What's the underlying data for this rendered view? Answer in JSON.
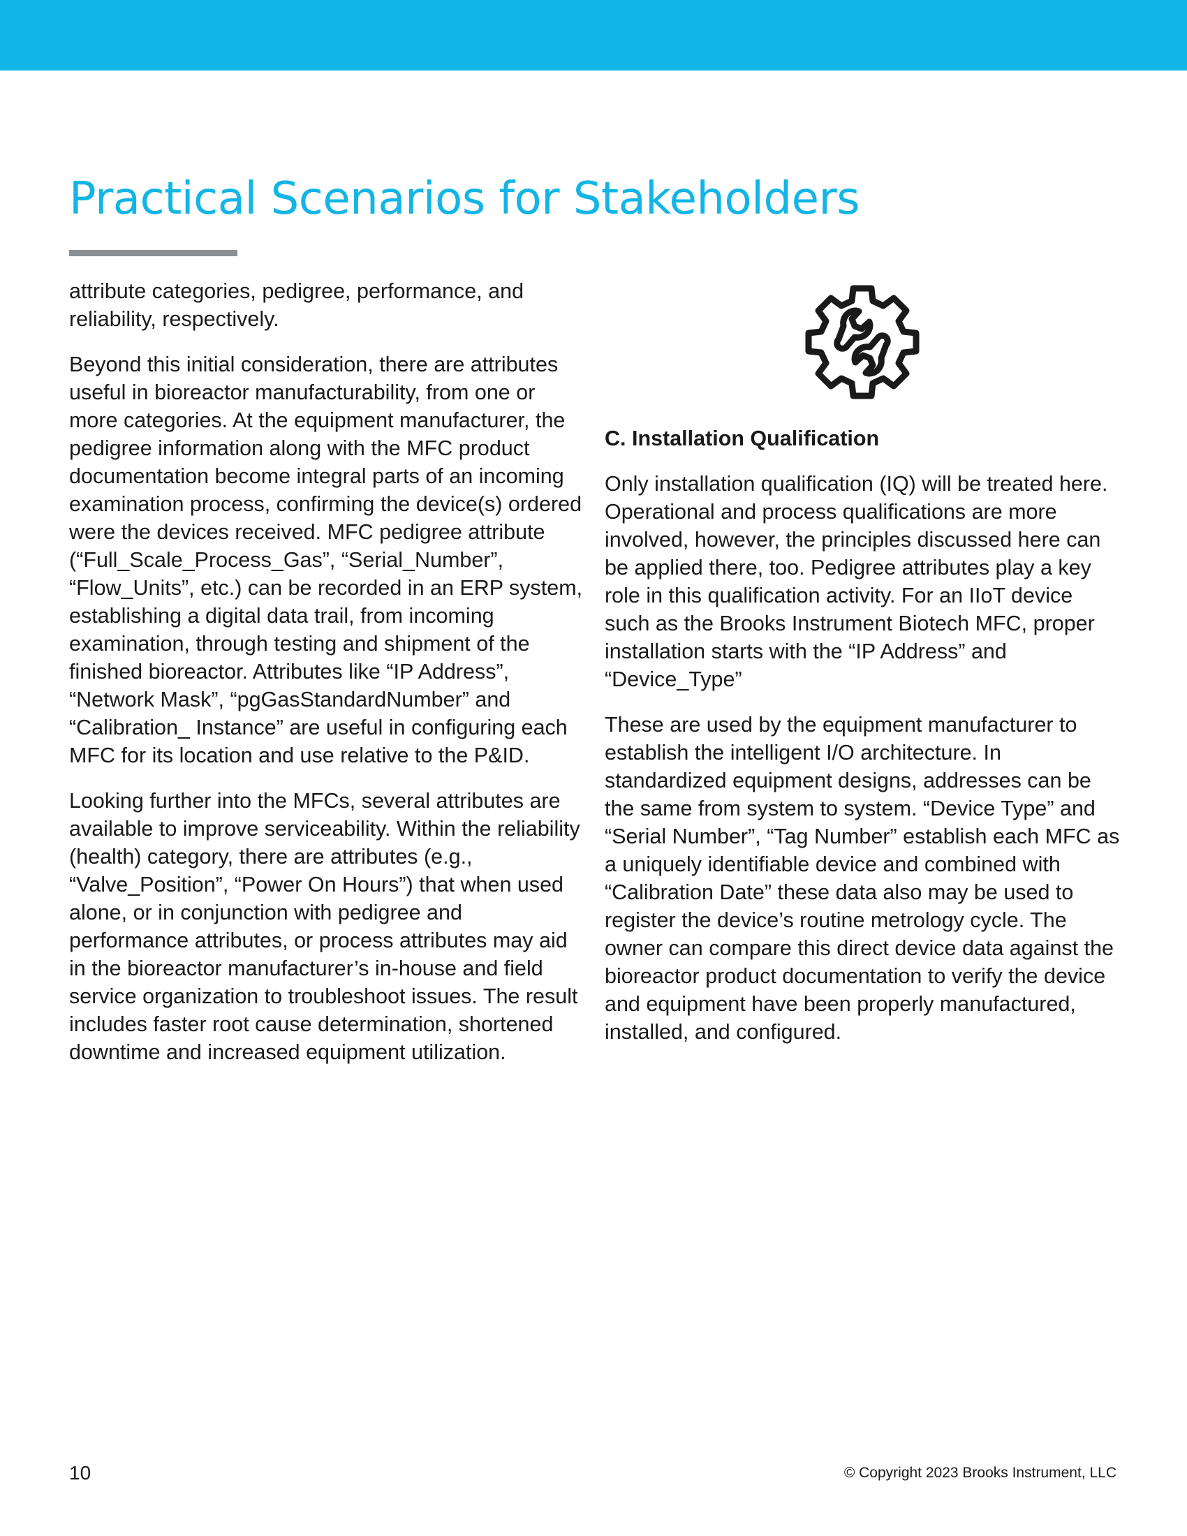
{
  "header": {
    "band_color": "#12b5e5"
  },
  "page": {
    "title": "Practical Scenarios for Stakeholders",
    "title_color": "#12b5e5",
    "rule_color": "#8a8f94"
  },
  "left_column": {
    "paragraphs": [
      "attribute categories, pedigree, performance, and reliability, respectively.",
      "Beyond this initial consideration, there are attributes useful in bioreactor manufacturability, from one or more categories. At the equipment manufacturer, the pedigree information along with the MFC product documentation become integral parts of an incoming examination process, confirming the device(s) ordered were the devices received. MFC pedigree attribute (“Full_Scale_Process_Gas”, “Serial_Number”, “Flow_Units”, etc.) can be recorded in an ERP system, establishing a digital data trail, from incoming examination, through testing and shipment of the finished bioreactor. Attributes like “IP Address”, “Network Mask”, “pgGasStandardNumber” and “Calibration_ Instance” are useful in configuring each MFC for its location and use relative to the P&ID.",
      "Looking further into the MFCs, several attributes are available to improve serviceability. Within the reliability (health) category, there are attributes (e.g., “Valve_Position”, “Power On Hours”) that when used alone, or in conjunction with pedigree and performance attributes, or process attributes may aid in the bioreactor manufacturer’s in-house and field service organization to troubleshoot issues. The result includes faster root cause determination, shortened downtime and increased equipment utilization."
    ]
  },
  "right_column": {
    "icon": "gear-wrench-icon",
    "heading": "C.  Installation Qualification",
    "paragraphs": [
      "Only installation qualification (IQ) will be treated here. Operational and process qualifications are more involved, however, the principles discussed here can be applied there, too. Pedigree attributes play a key role in this qualification activity. For an IIoT device such as the Brooks Instrument Biotech MFC, proper installation starts with the “IP Address” and “Device_Type”",
      "These are used by the equipment manufacturer to establish the intelligent I/O architecture. In standardized equipment designs, addresses can be the same from system to system. “Device Type” and “Serial Number”, “Tag Number” establish each MFC as a uniquely identifiable device and combined with “Calibration Date” these data also may be used to register the device’s routine metrology cycle. The owner can compare this direct device data against the bioreactor product documentation to verify the device and equipment have been properly manufactured, installed, and configured."
    ]
  },
  "footer": {
    "page_number": "10",
    "copyright": "© Copyright 2023 Brooks Instrument, LLC"
  }
}
